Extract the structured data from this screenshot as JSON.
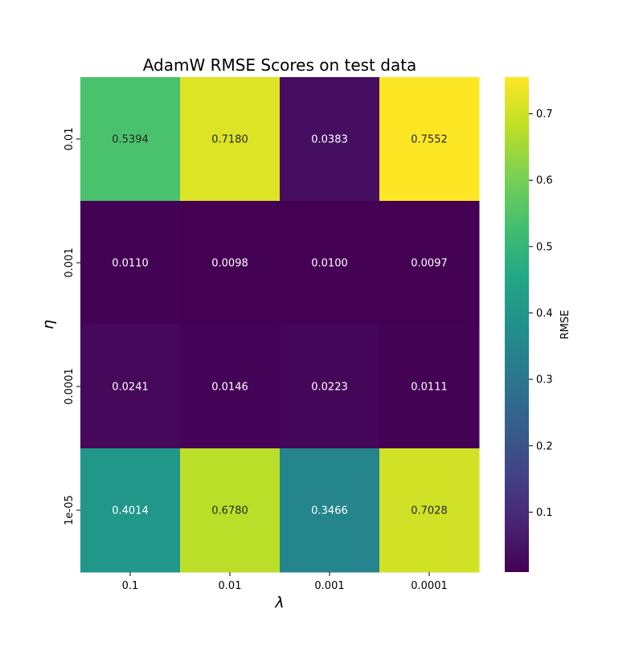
{
  "chart_data": {
    "type": "heatmap",
    "title": "AdamW RMSE Scores on test data",
    "xlabel": "λ",
    "ylabel": "η",
    "x_categories": [
      "0.1",
      "0.01",
      "0.001",
      "0.0001"
    ],
    "y_categories": [
      "0.01",
      "0.001",
      "0.0001",
      "1e-05"
    ],
    "values": [
      [
        0.5394,
        0.718,
        0.0383,
        0.7552
      ],
      [
        0.011,
        0.0098,
        0.01,
        0.0097
      ],
      [
        0.0241,
        0.0146,
        0.0223,
        0.0111
      ],
      [
        0.4014,
        0.678,
        0.3466,
        0.7028
      ]
    ],
    "value_format": "4 decimals",
    "colormap": "viridis",
    "colorbar": {
      "label": "RMSE",
      "min": 0.0097,
      "max": 0.7552,
      "ticks": [
        0.1,
        0.2,
        0.3,
        0.4,
        0.5,
        0.6,
        0.7
      ],
      "tick_labels": [
        "0.1",
        "0.2",
        "0.3",
        "0.4",
        "0.5",
        "0.6",
        "0.7"
      ]
    }
  }
}
